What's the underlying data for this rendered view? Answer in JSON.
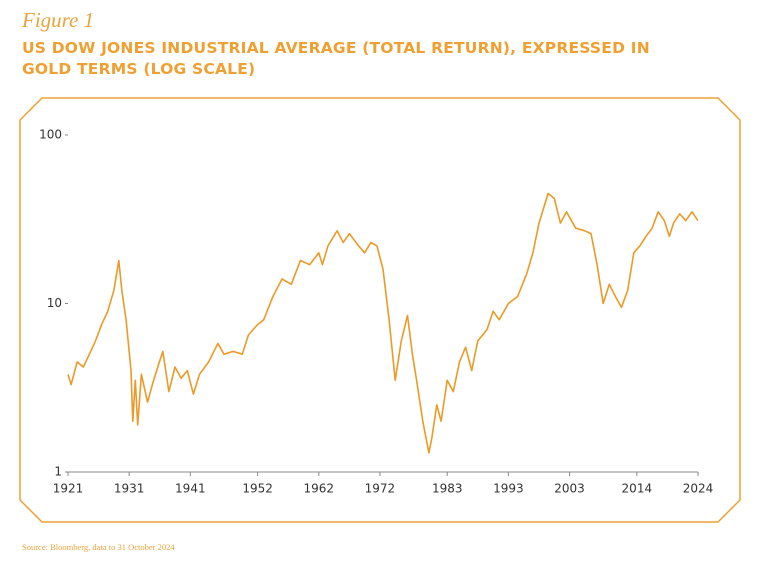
{
  "chart_data": {
    "type": "line",
    "figure_label": "Figure 1",
    "title": "US DOW JONES INDUSTRIAL AVERAGE (TOTAL RETURN), EXPRESSED IN GOLD TERMS (LOG SCALE)",
    "source": "Source: Bloomberg, data to 31 October 2024",
    "color": "#eb9a27",
    "log_scale": true,
    "x": [
      1921.0,
      1921.5,
      1922.5,
      1923.5,
      1924.5,
      1925.5,
      1926.5,
      1927.5,
      1928.5,
      1929.3,
      1929.8,
      1930.5,
      1931.3,
      1931.6,
      1932.0,
      1932.4,
      1933.0,
      1934.0,
      1935.0,
      1936.5,
      1937.5,
      1938.5,
      1939.5,
      1940.5,
      1941.5,
      1942.5,
      1944.0,
      1945.5,
      1946.5,
      1948.0,
      1949.5,
      1950.5,
      1952.0,
      1953.0,
      1954.5,
      1956.0,
      1957.5,
      1959.0,
      1960.5,
      1962.0,
      1962.6,
      1963.5,
      1965.0,
      1966.0,
      1967.0,
      1968.5,
      1969.5,
      1970.5,
      1971.5,
      1972.5,
      1973.5,
      1974.5,
      1975.5,
      1976.5,
      1977.3,
      1978.0,
      1979.0,
      1980.0,
      1980.5,
      1981.3,
      1982.0,
      1983.0,
      1984.0,
      1985.0,
      1986.0,
      1987.0,
      1988.0,
      1989.5,
      1990.5,
      1991.5,
      1993.0,
      1994.5,
      1996.0,
      1997.0,
      1998.0,
      1999.5,
      2000.5,
      2001.5,
      2002.5,
      2004.0,
      2005.5,
      2006.5,
      2007.5,
      2008.5,
      2009.5,
      2010.5,
      2011.5,
      2012.5,
      2013.5,
      2014.5,
      2015.5,
      2016.5,
      2017.5,
      2018.5,
      2019.3,
      2020.0,
      2021.0,
      2022.0,
      2023.0,
      2024.0
    ],
    "values": [
      3.8,
      3.3,
      4.5,
      4.2,
      5,
      6,
      7.5,
      9,
      12,
      18,
      12,
      8,
      4,
      2.0,
      3.5,
      1.9,
      3.8,
      2.6,
      3.5,
      5.2,
      3,
      4.2,
      3.6,
      4,
      2.9,
      3.8,
      4.5,
      5.8,
      5,
      5.2,
      5,
      6.5,
      7.5,
      8,
      11,
      14,
      13,
      18,
      17,
      20,
      17,
      22,
      27,
      23,
      26,
      22,
      20,
      23,
      22,
      16,
      8,
      3.5,
      6,
      8.5,
      5,
      3.5,
      2,
      1.3,
      1.6,
      2.5,
      2,
      3.5,
      3,
      4.5,
      5.5,
      4,
      6,
      7,
      9,
      8,
      10,
      11,
      15,
      20,
      30,
      45,
      42,
      30,
      35,
      28,
      27,
      26,
      17,
      10,
      13,
      11,
      9.5,
      12,
      20,
      22,
      25,
      28,
      35,
      31,
      25,
      30,
      34,
      31,
      35,
      31
    ],
    "xlim": [
      1921,
      2024
    ],
    "xticks": [
      1921,
      1931,
      1941,
      1952,
      1962,
      1972,
      1983,
      1993,
      2003,
      2014,
      2024
    ],
    "ylim": [
      1,
      100
    ],
    "yticks": [
      1,
      10,
      100
    ]
  }
}
